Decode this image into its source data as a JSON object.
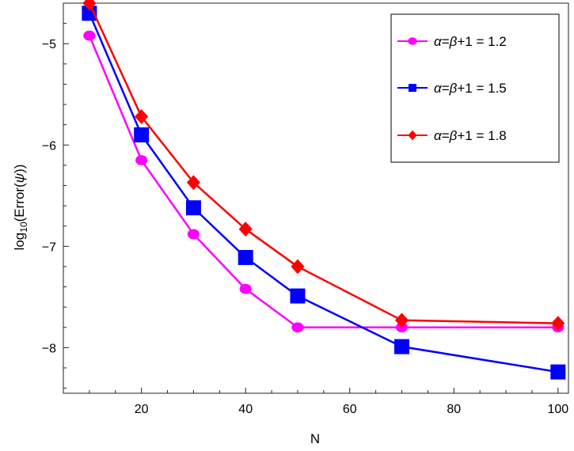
{
  "chart_data": {
    "type": "line",
    "title": "",
    "xlabel": "N",
    "ylabel_prefix": "log",
    "ylabel_sub": "10",
    "ylabel_main": "(Error(",
    "ylabel_psi": "ψ",
    "ylabel_close": "))",
    "xlim": [
      5,
      102
    ],
    "ylim": [
      -8.45,
      -4.6
    ],
    "xticks": [
      20,
      40,
      60,
      80,
      100
    ],
    "xtick_labels": [
      "20",
      "40",
      "60",
      "80",
      "100"
    ],
    "yticks": [
      -8,
      -7,
      -6,
      -5
    ],
    "ytick_labels": [
      "−8",
      "−7",
      "−6",
      "−5"
    ],
    "legend_position": "top-right",
    "series": [
      {
        "name": "α=β+1 = 1.2",
        "alpha_sym": "α",
        "beta_sym": "β",
        "label_rest": "+1 = 1.2",
        "color": "#ff00ff",
        "marker": "circle",
        "x": [
          10,
          20,
          30,
          40,
          50,
          70,
          100
        ],
        "y": [
          -4.92,
          -6.15,
          -6.88,
          -7.42,
          -7.8,
          -7.8,
          -7.8
        ]
      },
      {
        "name": "α=β+1 = 1.5",
        "alpha_sym": "α",
        "beta_sym": "β",
        "label_rest": "+1 = 1.5",
        "color": "#0000ff",
        "marker": "square",
        "x": [
          10,
          20,
          30,
          40,
          50,
          70,
          100
        ],
        "y": [
          -4.7,
          -5.9,
          -6.62,
          -7.11,
          -7.49,
          -7.99,
          -8.24
        ]
      },
      {
        "name": "α=β+1 = 1.8",
        "alpha_sym": "α",
        "beta_sym": "β",
        "label_rest": "+1 = 1.8",
        "color": "#ff0000",
        "marker": "diamond",
        "x": [
          10,
          20,
          30,
          40,
          50,
          70,
          100
        ],
        "y": [
          -4.6,
          -5.72,
          -6.37,
          -6.83,
          -7.2,
          -7.73,
          -7.76
        ]
      }
    ]
  }
}
